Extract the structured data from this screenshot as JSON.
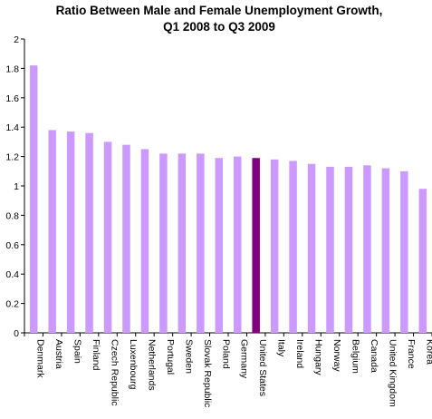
{
  "chart_data": {
    "type": "bar",
    "title_lines": [
      "Ratio Between Male and Female Unemployment Growth,",
      "Q1 2008  to Q3 2009"
    ],
    "categories": [
      "Denmark",
      "Austria",
      "Spain",
      "Finland",
      "Czech Republic",
      "Luxenbourg",
      "Netherlands",
      "Portugal",
      "Sweden",
      "Slovak Republic",
      "Poland",
      "Germany",
      "United States",
      "Italy",
      "Ireland",
      "Hungary",
      "Norway",
      "Belgium",
      "Canada",
      "United Kingdom",
      "France",
      "Korea"
    ],
    "values": [
      1.82,
      1.38,
      1.37,
      1.36,
      1.3,
      1.28,
      1.25,
      1.22,
      1.22,
      1.22,
      1.19,
      1.2,
      1.19,
      1.18,
      1.17,
      1.15,
      1.13,
      1.13,
      1.14,
      1.12,
      1.1,
      0.98
    ],
    "highlight_category": "United States",
    "ylim": [
      0,
      2
    ],
    "yticks": [
      "0",
      "0.2",
      "0.4",
      "0.6",
      "0.8",
      "1",
      "1.2",
      "1.4",
      "1.6",
      "1.8",
      "2"
    ],
    "xlabel": "",
    "ylabel": "",
    "colors": {
      "bar": "#cc99ff",
      "highlight": "#800080",
      "axis": "#000000"
    }
  }
}
